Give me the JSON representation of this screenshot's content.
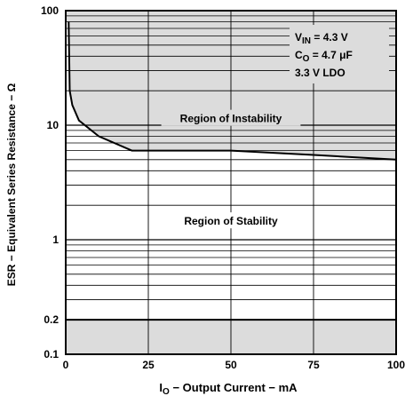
{
  "chart_data": {
    "type": "line",
    "xlabel_prefix": "I",
    "xlabel_sub": "O",
    "xlabel_rest": " − Output Current − mA",
    "ylabel": "ESR − Equivalent Series Resistance − Ω",
    "x_scale": "linear",
    "y_scale": "log",
    "xlim": [
      0,
      100
    ],
    "ylim": [
      0.1,
      100
    ],
    "x_ticks": [
      0,
      25,
      50,
      75,
      100
    ],
    "x_tick_labels": [
      "0",
      "25",
      "50",
      "75",
      "100"
    ],
    "y_ticks": [
      0.1,
      0.2,
      1,
      10,
      100
    ],
    "y_tick_labels": [
      "0.1",
      "0.2",
      "1",
      "10",
      "100"
    ],
    "grid": true,
    "series": [
      {
        "x": [
          0.9,
          1.2,
          2,
          4,
          10,
          20,
          50,
          75,
          100
        ],
        "y": [
          80,
          20,
          15,
          11,
          8,
          6,
          6,
          5.5,
          5
        ]
      }
    ],
    "lower_boundary": {
      "x": [
        0,
        100
      ],
      "y": [
        0.2,
        0.2
      ]
    },
    "shade_color": "#dcdcdc",
    "regions": [
      {
        "label": "Region of Instability",
        "x": 50,
        "y": 11
      },
      {
        "label": "Region of Stability",
        "x": 50,
        "y": 1.4
      }
    ],
    "conditions": [
      {
        "main": "V",
        "sub": "IN",
        "rest": " = 4.3 V"
      },
      {
        "main": "C",
        "sub": "O",
        "rest": " = 4.7 μF"
      },
      {
        "main": "3.3 V LDO",
        "sub": "",
        "rest": ""
      }
    ]
  }
}
